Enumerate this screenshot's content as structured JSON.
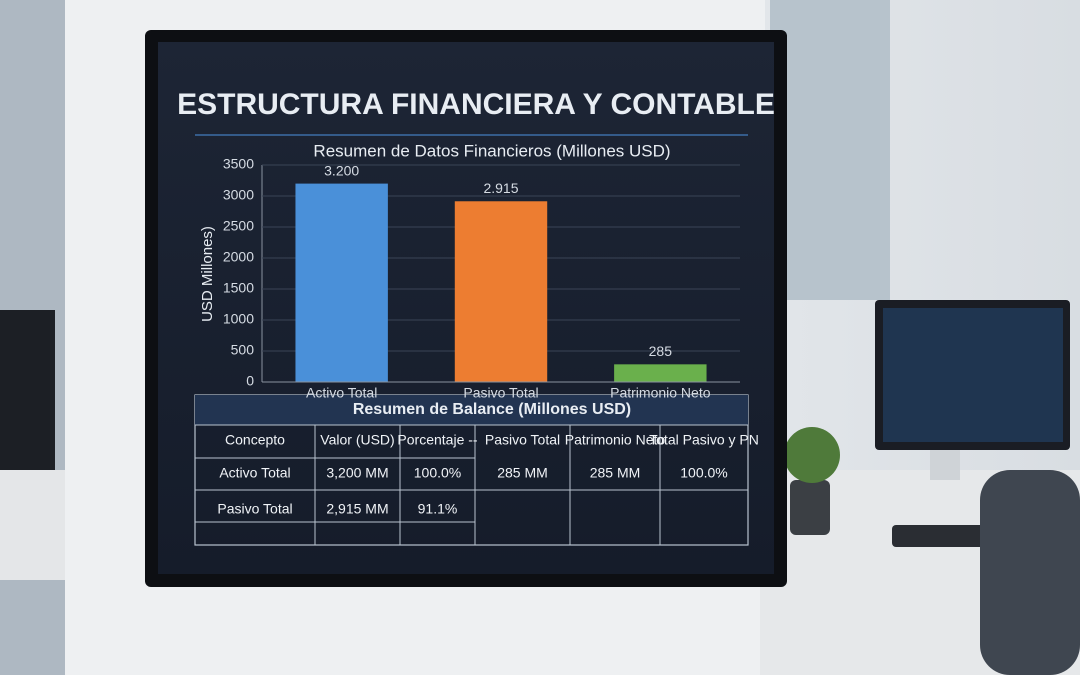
{
  "header": {
    "title": "ESTRUCTURA FINANCIERA Y CONTABLE"
  },
  "chart_data": {
    "type": "bar",
    "title": "Resumen de Datos Financieros (Millones USD)",
    "y_label": "USD Millones)",
    "categories": [
      "Activo Total",
      "Pasivo Total",
      "Patrimonio Neto"
    ],
    "values": [
      3200,
      2915,
      285
    ],
    "value_labels": [
      "3.200",
      "2.915",
      "285"
    ],
    "colors": [
      "#4a90d9",
      "#ed7d31",
      "#6ab04c"
    ],
    "ylim": [
      0,
      3500
    ],
    "yticks": [
      0,
      500,
      1000,
      1500,
      2000,
      2500,
      3000,
      3500
    ],
    "grid": true
  },
  "table": {
    "title": "Resumen de Balance (Millones USD)",
    "header": [
      "Concepto",
      "Valor (USD)",
      "Porcentaje --",
      "Pasivo Total",
      "Patrimonio Neto",
      "Total Pasivo y PN"
    ],
    "rows": [
      [
        "Activo Total",
        "3,200 MM",
        "100.0%"
      ],
      [
        "Pasivo Total",
        "2,915 MM",
        "91.1%"
      ]
    ],
    "summary": [
      "285 MM",
      "285 MM",
      "100.0%"
    ]
  }
}
